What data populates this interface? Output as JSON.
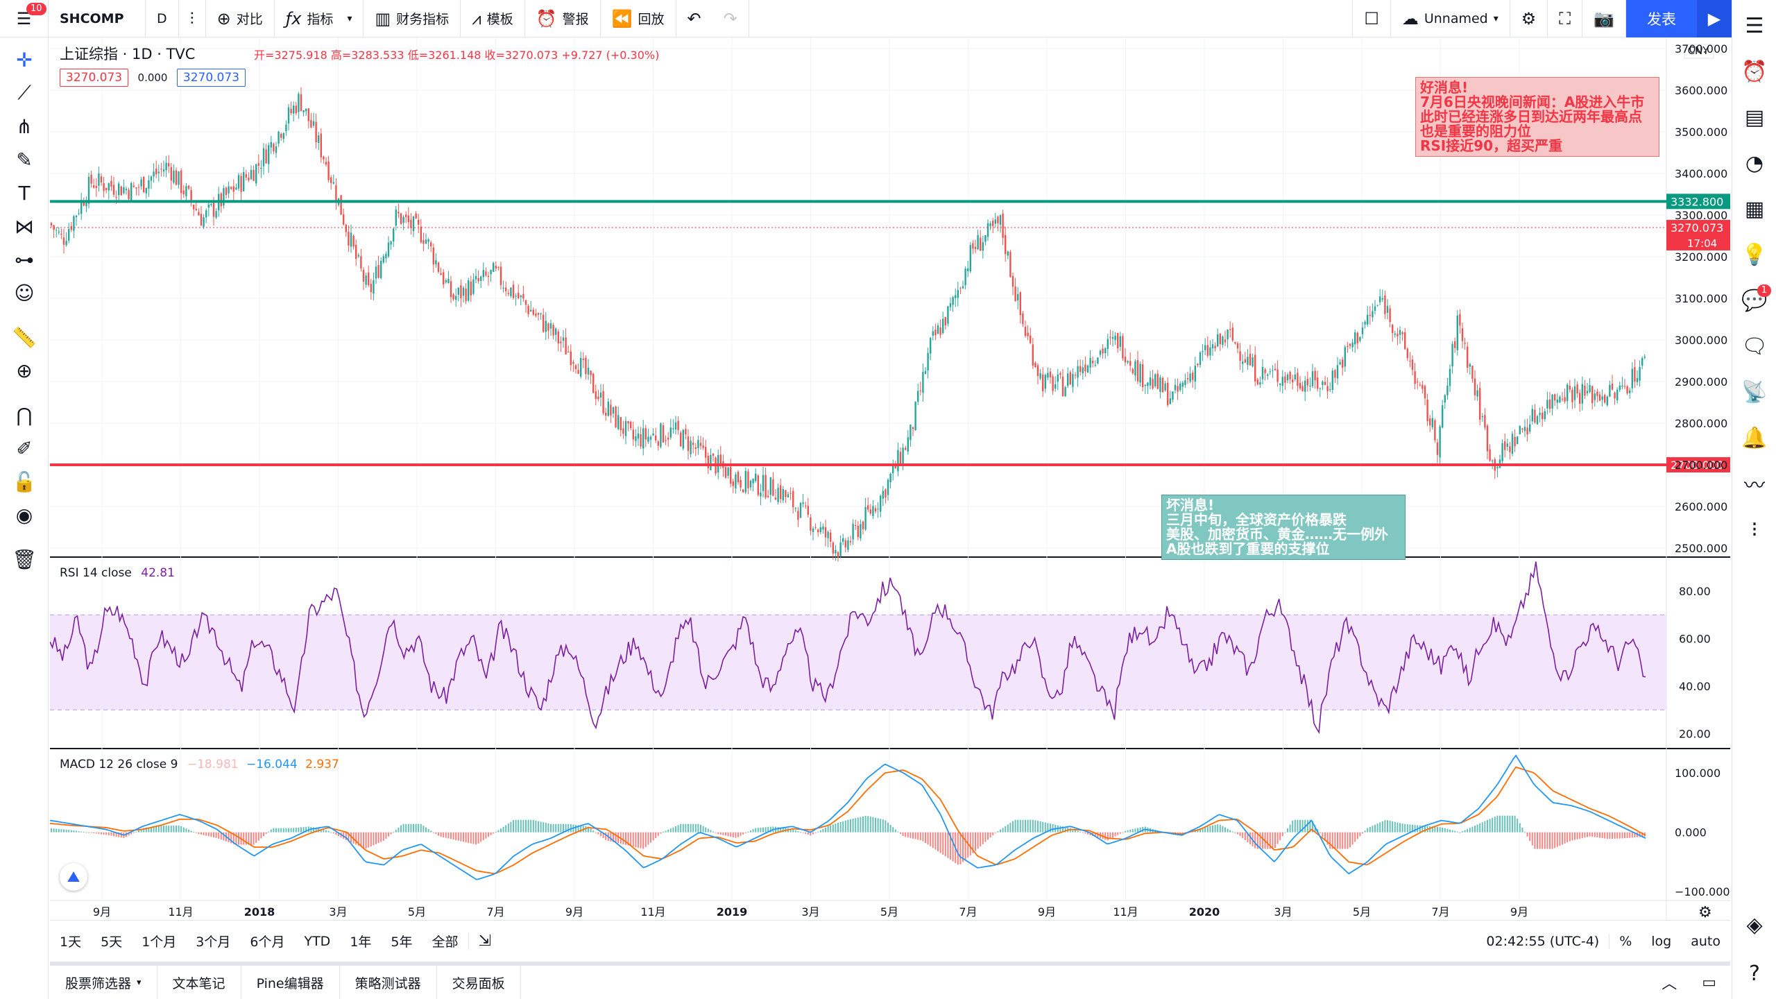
{
  "topbar": {
    "menu_badge": "10",
    "symbol": "SHCOMP",
    "interval": "D",
    "compare_label": "对比",
    "indicators_label": "指标",
    "financials_label": "财务指标",
    "templates_label": "模板",
    "alert_label": "警报",
    "replay_label": "回放",
    "layout_name": "Unnamed",
    "publish_label": "发表"
  },
  "legend": {
    "title": "上证综指 · 1D · TVC",
    "ohlc": "开=3275.918  高=3283.533  低=3261.148  收=3270.073  +9.727 (+0.30%)",
    "box1": "3270.073",
    "mid": "0.000",
    "box2": "3270.073",
    "rsi_label": "RSI 14 close",
    "rsi_value": "42.81",
    "macd_label": "MACD 12 26 close 9",
    "macd_v1": "−18.981",
    "macd_v2": "−16.044",
    "macd_v3": "2.937"
  },
  "notes": {
    "good": [
      "好消息!",
      "7月6日央视晚间新闻：A股进入牛市",
      "此时已经连涨多日到达近两年最高点",
      "也是重要的阻力位",
      "RSI接近90，超买严重"
    ],
    "bad": [
      "坏消息!",
      "三月中旬，全球资产价格暴跌",
      "美股、加密货币、黄金……无一例外",
      "A股也跌到了重要的支撑位"
    ]
  },
  "chart_data": [
    {
      "type": "candlestick",
      "currency": "CNY",
      "price_axis_ticks": [
        "3700.000",
        "3600.000",
        "3500.000",
        "3400.000",
        "3300.000",
        "3200.000",
        "3100.000",
        "3000.000",
        "2900.000",
        "2800.000",
        "2700.000",
        "2600.000",
        "2500.000"
      ],
      "ylim": [
        2480,
        3720
      ],
      "x_tick_labels": [
        "9月",
        "11月",
        "2018",
        "3月",
        "5月",
        "7月",
        "9月",
        "11月",
        "2019",
        "3月",
        "5月",
        "7月",
        "9月",
        "11月",
        "2020",
        "3月",
        "5月",
        "7月",
        "9月"
      ],
      "horizontal_lines": [
        {
          "price": 3332.8,
          "label": "3332.800",
          "color": "#089981"
        },
        {
          "price": 2700.0,
          "label": "2700.000",
          "color": "#f23645"
        }
      ],
      "last_price": {
        "value": 3270.073,
        "label": "3270.073",
        "countdown": "17:04"
      },
      "close_path": [
        [
          0,
          3280
        ],
        [
          18,
          3240
        ],
        [
          60,
          3380
        ],
        [
          120,
          3360
        ],
        [
          170,
          3420
        ],
        [
          220,
          3290
        ],
        [
          300,
          3420
        ],
        [
          360,
          3580
        ],
        [
          400,
          3420
        ],
        [
          440,
          3200
        ],
        [
          460,
          3110
        ],
        [
          500,
          3300
        ],
        [
          540,
          3250
        ],
        [
          580,
          3100
        ],
        [
          640,
          3160
        ],
        [
          700,
          3060
        ],
        [
          760,
          2950
        ],
        [
          800,
          2840
        ],
        [
          840,
          2760
        ],
        [
          900,
          2780
        ],
        [
          960,
          2700
        ],
        [
          1000,
          2660
        ],
        [
          1050,
          2640
        ],
        [
          1100,
          2560
        ],
        [
          1140,
          2490
        ],
        [
          1200,
          2630
        ],
        [
          1240,
          2770
        ],
        [
          1270,
          2990
        ],
        [
          1300,
          3080
        ],
        [
          1330,
          3220
        ],
        [
          1370,
          3280
        ],
        [
          1400,
          3050
        ],
        [
          1430,
          2900
        ],
        [
          1460,
          2890
        ],
        [
          1500,
          2960
        ],
        [
          1540,
          3000
        ],
        [
          1570,
          2920
        ],
        [
          1620,
          2860
        ],
        [
          1660,
          2960
        ],
        [
          1700,
          3010
        ],
        [
          1740,
          2920
        ],
        [
          1790,
          2910
        ],
        [
          1840,
          2890
        ],
        [
          1880,
          3000
        ],
        [
          1920,
          3100
        ],
        [
          1960,
          2950
        ],
        [
          2000,
          2750
        ],
        [
          2030,
          3050
        ],
        [
          2080,
          2700
        ],
        [
          2130,
          2800
        ],
        [
          2180,
          2880
        ],
        [
          2220,
          2870
        ],
        [
          2260,
          2870
        ],
        [
          2300,
          2950
        ],
        [
          2340,
          3150
        ],
        [
          2370,
          3420
        ],
        [
          2400,
          3250
        ],
        [
          2440,
          3350
        ],
        [
          2480,
          3400
        ],
        [
          2510,
          3310
        ],
        [
          2530,
          3270
        ]
      ]
    },
    {
      "type": "line",
      "name": "RSI 14 close",
      "last_value": 42.81,
      "ylim": [
        14,
        94
      ],
      "y_ticks": [
        "80.00",
        "60.00",
        "40.00",
        "20.00"
      ],
      "band": [
        30,
        70
      ],
      "values": [
        60,
        52,
        68,
        45,
        70,
        72,
        60,
        40,
        62,
        55,
        48,
        68,
        64,
        50,
        38,
        60,
        55,
        44,
        30,
        70,
        75,
        80,
        55,
        28,
        45,
        70,
        55,
        60,
        40,
        35,
        52,
        60,
        42,
        65,
        55,
        40,
        30,
        50,
        58,
        44,
        25,
        40,
        52,
        60,
        44,
        35,
        62,
        66,
        40,
        48,
        55,
        70,
        45,
        38,
        58,
        62,
        40,
        35,
        55,
        72,
        68,
        80,
        84,
        62,
        50,
        75,
        70,
        56,
        40,
        28,
        45,
        50,
        62,
        40,
        35,
        60,
        50,
        38,
        28,
        58,
        66,
        55,
        72,
        60,
        44,
        50,
        62,
        55,
        46,
        68,
        75,
        60,
        40,
        22,
        50,
        66,
        55,
        38,
        30,
        45,
        60,
        55,
        48,
        60,
        42,
        60,
        66,
        58,
        75,
        90,
        58,
        42,
        55,
        64,
        60,
        50,
        60,
        42
      ]
    },
    {
      "type": "line",
      "name": "MACD 12 26 close 9",
      "ylim": [
        -115,
        140
      ],
      "y_ticks": [
        "100.000",
        "0.000",
        "−100.000"
      ],
      "macd": [
        20,
        15,
        10,
        5,
        -5,
        10,
        20,
        30,
        20,
        5,
        -20,
        -40,
        -20,
        -10,
        5,
        10,
        -10,
        -50,
        -55,
        -30,
        -20,
        -40,
        -60,
        -80,
        -70,
        -40,
        -20,
        -10,
        5,
        15,
        -5,
        -30,
        -60,
        -45,
        -20,
        0,
        -10,
        -25,
        -10,
        5,
        10,
        0,
        20,
        50,
        90,
        115,
        100,
        80,
        30,
        -40,
        -60,
        -55,
        -30,
        -10,
        5,
        10,
        0,
        -20,
        -10,
        5,
        0,
        -5,
        10,
        30,
        20,
        -20,
        -50,
        -10,
        20,
        -40,
        -70,
        -50,
        -20,
        -5,
        10,
        20,
        15,
        40,
        80,
        130,
        80,
        50,
        45,
        35,
        20,
        5,
        -10
      ],
      "signal": [
        15,
        12,
        10,
        8,
        2,
        5,
        12,
        22,
        22,
        12,
        -5,
        -25,
        -25,
        -15,
        -2,
        8,
        0,
        -30,
        -45,
        -40,
        -30,
        -35,
        -50,
        -65,
        -70,
        -55,
        -35,
        -20,
        -5,
        8,
        5,
        -15,
        -40,
        -45,
        -30,
        -10,
        -8,
        -18,
        -15,
        -2,
        6,
        4,
        12,
        35,
        70,
        100,
        105,
        90,
        55,
        0,
        -40,
        -55,
        -45,
        -25,
        -5,
        5,
        3,
        -10,
        -12,
        -2,
        0,
        -3,
        5,
        20,
        22,
        0,
        -30,
        -25,
        5,
        -20,
        -50,
        -55,
        -35,
        -15,
        2,
        14,
        15,
        30,
        60,
        110,
        100,
        70,
        55,
        40,
        28,
        12,
        -5
      ]
    }
  ],
  "time_axis": {
    "clock": "02:42:55 (UTC-4)"
  },
  "bottombar": {
    "ranges": [
      "1天",
      "5天",
      "1个月",
      "3个月",
      "6个月",
      "YTD",
      "1年",
      "5年",
      "全部"
    ],
    "pct": "%",
    "log": "log",
    "auto": "auto"
  },
  "bottompanel": {
    "tabs": [
      "股票筛选器",
      "文本笔记",
      "Pine编辑器",
      "策略测试器",
      "交易面板"
    ]
  },
  "colors": {
    "up": "#26a69a",
    "down": "#ef5350",
    "rsi": "#7b1fa2",
    "rsi_band": "#f3e5fb",
    "macd": "#2196f3",
    "signal": "#ff6d00",
    "support": "#f23645",
    "resistance": "#089981"
  }
}
